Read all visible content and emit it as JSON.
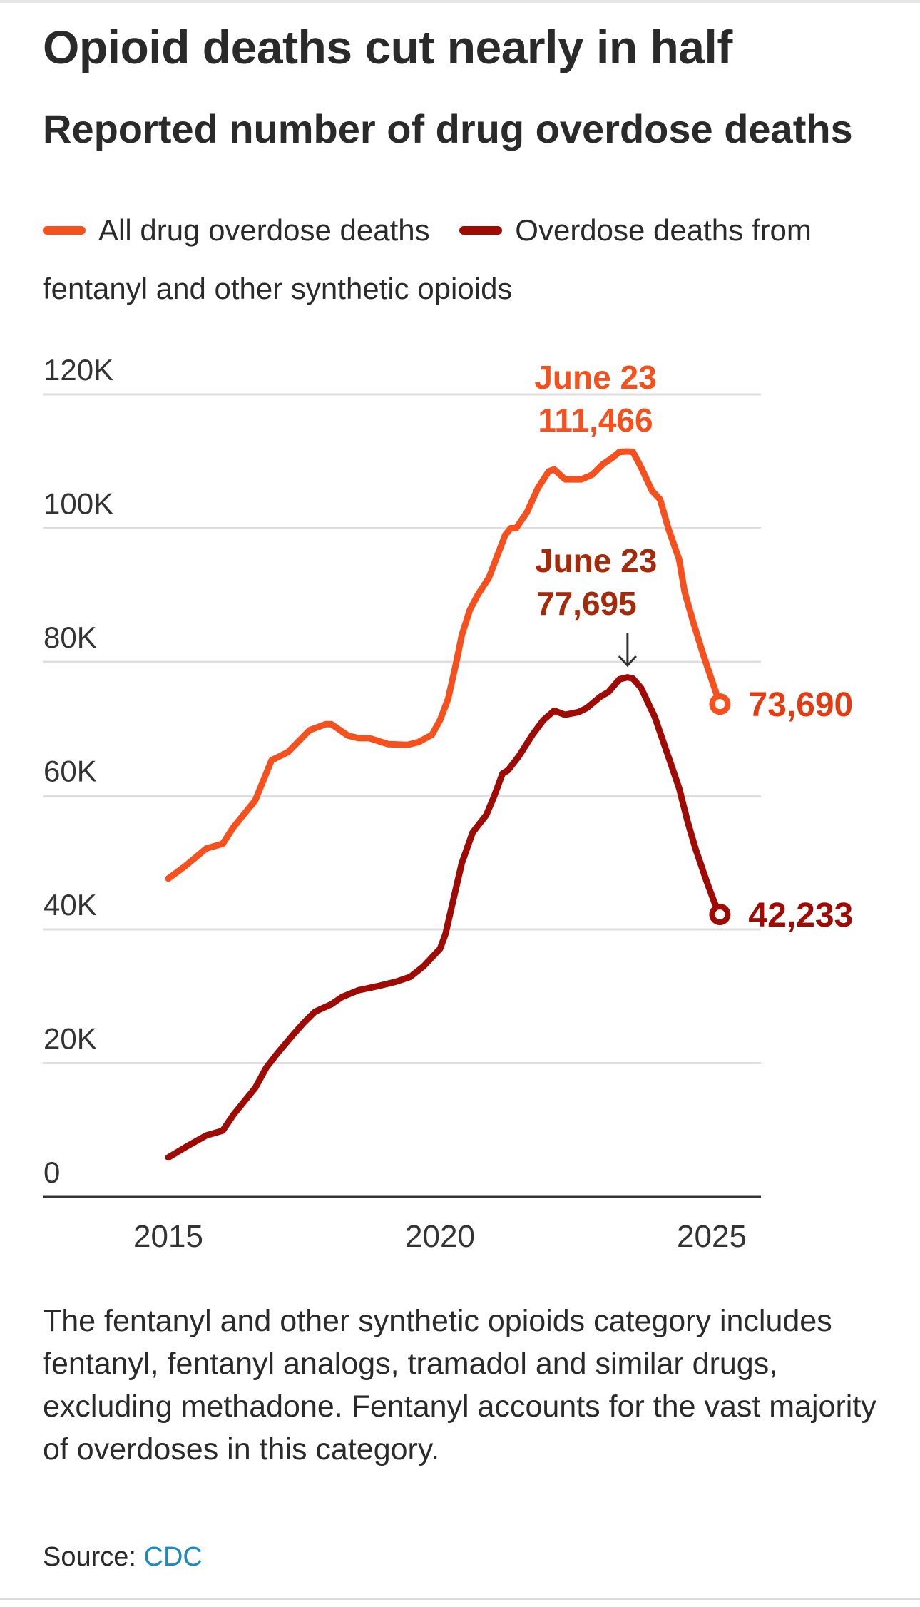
{
  "header": {
    "title": "Opioid deaths cut nearly in half",
    "subtitle": "Reported number of drug overdose deaths"
  },
  "legend": [
    {
      "label": "All drug overdose deaths",
      "color": "#f4511e"
    },
    {
      "label": "Overdose deaths from fentanyl and other synthetic opioids",
      "color": "#9e0a04"
    }
  ],
  "footer": {
    "note": "The fentanyl and other synthetic opioids category includes fentanyl, fentanyl analogs, tramadol and similar drugs, excluding methadone. Fentanyl accounts for the vast majority of overdoses in this category.",
    "source_prefix": "Source: ",
    "source_link": "CDC"
  },
  "colors": {
    "all_drugs": "#f4511e",
    "all_drugs_label": "#e23c12",
    "synthetic": "#9e0a04",
    "synthetic_label": "#a52a0a",
    "gridline": "#dedede",
    "axis": "#333333",
    "link": "#1a8ac0"
  },
  "chart_data": {
    "type": "line",
    "title": "Opioid deaths cut nearly in half",
    "subtitle": "Reported number of drug overdose deaths",
    "xlabel": "",
    "ylabel": "",
    "xlim": [
      2015,
      2026.5
    ],
    "ylim": [
      0,
      120000
    ],
    "x_ticks": [
      2015,
      2020,
      2025
    ],
    "x_tick_labels": [
      "2015",
      "2020",
      "2025"
    ],
    "y_ticks": [
      0,
      20000,
      40000,
      60000,
      80000,
      100000,
      120000
    ],
    "y_tick_labels": [
      "0",
      "20K",
      "40K",
      "60K",
      "80K",
      "100K",
      "120K"
    ],
    "grid": "horizontal",
    "legend_position": "top",
    "series": [
      {
        "name": "All drug overdose deaths",
        "x": [
          2015.0,
          2015.3,
          2015.7,
          2016.0,
          2016.2,
          2016.6,
          2016.9,
          2017.2,
          2017.6,
          2017.9,
          2018.0,
          2018.3,
          2018.5,
          2018.7,
          2019.05,
          2019.4,
          2019.6,
          2019.85,
          2020.0,
          2020.15,
          2020.3,
          2020.4,
          2020.55,
          2020.7,
          2020.9,
          2021.05,
          2021.2,
          2021.3,
          2021.4,
          2021.6,
          2021.8,
          2022.0,
          2022.1,
          2022.3,
          2022.6,
          2022.8,
          2023.0,
          2023.15,
          2023.3,
          2023.45,
          2023.55,
          2023.7,
          2023.9,
          2024.05,
          2024.2,
          2024.4,
          2024.5,
          2024.65,
          2024.85,
          2025.05,
          2025.15
        ],
        "values": [
          47600,
          49400,
          52100,
          52800,
          55300,
          59300,
          65300,
          66500,
          69800,
          70700,
          70700,
          69000,
          68600,
          68600,
          67700,
          67600,
          68000,
          69100,
          71300,
          74500,
          80000,
          84000,
          87800,
          90100,
          92600,
          95800,
          99000,
          100000,
          100000,
          102400,
          106000,
          108500,
          108800,
          107300,
          107300,
          108000,
          109600,
          110400,
          111400,
          111466,
          111400,
          109100,
          105600,
          104300,
          100000,
          95300,
          90500,
          86200,
          80900,
          76100,
          73690
        ]
      },
      {
        "name": "Overdose deaths from fentanyl and other synthetic opioids",
        "x": [
          2015.0,
          2015.35,
          2015.7,
          2016.0,
          2016.2,
          2016.6,
          2016.8,
          2017.0,
          2017.3,
          2017.5,
          2017.7,
          2018.0,
          2018.2,
          2018.5,
          2018.9,
          2019.2,
          2019.45,
          2019.7,
          2020.0,
          2020.1,
          2020.25,
          2020.4,
          2020.6,
          2020.85,
          2021.0,
          2021.15,
          2021.25,
          2021.45,
          2021.7,
          2021.9,
          2022.1,
          2022.3,
          2022.55,
          2022.7,
          2022.95,
          2023.1,
          2023.3,
          2023.45,
          2023.55,
          2023.7,
          2023.95,
          2024.2,
          2024.4,
          2024.55,
          2024.7,
          2024.9,
          2025.05,
          2025.15
        ],
        "values": [
          5900,
          7600,
          9200,
          9900,
          12300,
          16300,
          19300,
          21400,
          24300,
          26100,
          27700,
          28800,
          29900,
          30900,
          31600,
          32200,
          32900,
          34500,
          37100,
          39300,
          44600,
          49900,
          54500,
          57100,
          60000,
          63300,
          63800,
          65900,
          69100,
          71300,
          72700,
          72100,
          72500,
          73100,
          74800,
          75500,
          77400,
          77695,
          77500,
          76100,
          71800,
          65900,
          61100,
          56300,
          52100,
          47300,
          44000,
          42233
        ]
      }
    ],
    "annotations": [
      {
        "series": 0,
        "x": 2023.45,
        "date": "June 23",
        "value_label": "111,466",
        "type": "peak"
      },
      {
        "series": 1,
        "x": 2023.45,
        "date": "June 23",
        "value_label": "77,695",
        "type": "peak",
        "arrow": "down"
      },
      {
        "series": 0,
        "x": 2025.15,
        "value_label": "73,690",
        "type": "endpoint"
      },
      {
        "series": 1,
        "x": 2025.15,
        "value_label": "42,233",
        "type": "endpoint"
      }
    ]
  }
}
